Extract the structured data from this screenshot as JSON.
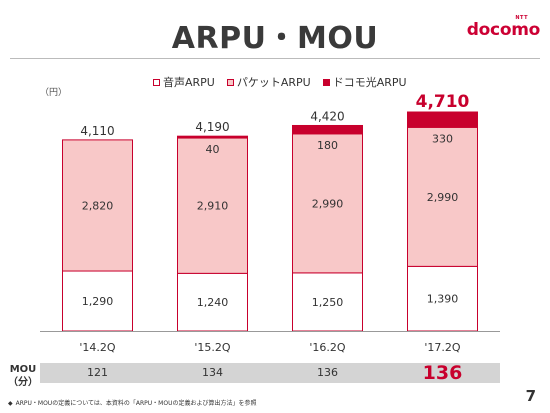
{
  "slide": {
    "title": "ARPU・MOU",
    "brand_small": "NTT",
    "brand_name": "docomo",
    "page_number": "7",
    "unit": "（円）",
    "mou_label_line1": "MOU",
    "mou_label_line2": "（分）",
    "footnote_bullet": "◆",
    "footnote": "ARPU・MOUの定義については、本資料の「ARPU・MOUの定義および算出方法」を参照"
  },
  "colors": {
    "accent": "#c8002d",
    "packet_fill": "#f8c8c8",
    "voice_fill": "#ffffff",
    "hikari_fill": "#c8002d",
    "mou_strip": "#d4d4d4"
  },
  "chart_data": {
    "type": "bar",
    "stacked": true,
    "categories": [
      "'14.2Q",
      "'15.2Q",
      "'16.2Q",
      "'17.2Q"
    ],
    "series": [
      {
        "name": "音声ARPU",
        "values": [
          1290,
          1240,
          1250,
          1390
        ]
      },
      {
        "name": "パケットARPU",
        "values": [
          2820,
          2910,
          2990,
          2990
        ]
      },
      {
        "name": "ドコモ光ARPU",
        "values": [
          0,
          40,
          180,
          330
        ]
      }
    ],
    "totals": [
      "4,110",
      "4,190",
      "4,420",
      "4,710"
    ],
    "segment_labels": [
      [
        "1,290",
        "2,820",
        ""
      ],
      [
        "1,240",
        "2,910",
        "40"
      ],
      [
        "1,250",
        "2,990",
        "180"
      ],
      [
        "1,390",
        "2,990",
        "330"
      ]
    ],
    "highlight_total_index": 3,
    "ylim": [
      0,
      4710
    ],
    "legend_position": "top",
    "mou": {
      "values": [
        "121",
        "134",
        "136",
        "136"
      ],
      "highlight_index": 3
    }
  }
}
